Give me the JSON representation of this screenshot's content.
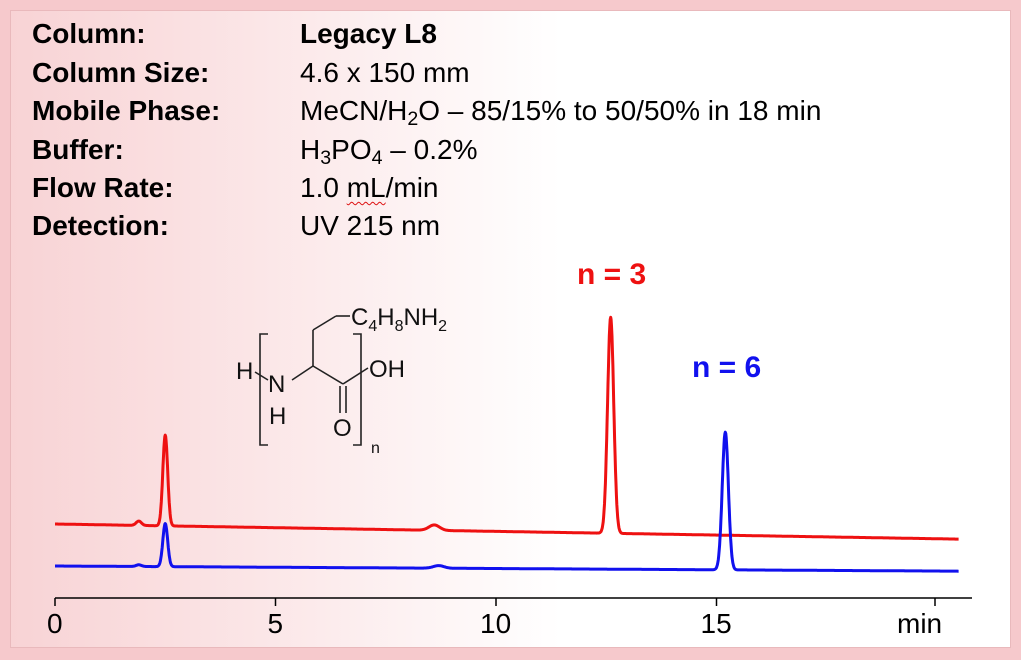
{
  "info": {
    "column_label": "Column:",
    "column_value": "Legacy L8",
    "size_label": "Column Size:",
    "size_value": "4.6 x 150 mm",
    "mobile_label": "Mobile Phase:",
    "mobile_value_a": "MeCN/H",
    "mobile_value_sub": "2",
    "mobile_value_b": "O – 85/15% to 50/50% in 18 min",
    "buffer_label": "Buffer:",
    "buffer_value_a": "H",
    "buffer_value_sub1": "3",
    "buffer_value_b": "PO",
    "buffer_value_sub2": "4",
    "buffer_value_c": " – 0.2%",
    "flow_label": "Flow Rate:",
    "flow_value_a": "1.0 ",
    "flow_value_b": "mL",
    "flow_value_c": "/min",
    "detection_label": "Detection:",
    "detection_value": "UV 215 nm"
  },
  "structure": {
    "side_chain_a": "C",
    "side_chain_sub1": "4",
    "side_chain_b": "H",
    "side_chain_sub2": "8",
    "side_chain_c": "NH",
    "side_chain_sub3": "2",
    "h_left": "H",
    "n_atom": "N",
    "h_below": "H",
    "oh": "OH",
    "o": "O",
    "n_subscript": "n"
  },
  "chart_data": {
    "type": "line",
    "title": "",
    "xlabel": "min",
    "ylabel": "",
    "xlim": [
      0,
      20.5
    ],
    "xticks": [
      0,
      5,
      10,
      15
    ],
    "xtick_labels": [
      "0",
      "5",
      "10",
      "15"
    ],
    "grid": false,
    "series": [
      {
        "name": "n = 3",
        "color": "#ee1111",
        "baseline": [
          [
            0,
            0.0
          ],
          [
            20.5,
            -0.07
          ]
        ],
        "peaks": [
          {
            "t": 1.9,
            "h": 0.02,
            "w": 0.06
          },
          {
            "t": 2.5,
            "h": 0.42,
            "w": 0.055
          },
          {
            "t": 8.6,
            "h": 0.025,
            "w": 0.12
          },
          {
            "t": 12.6,
            "h": 1.0,
            "w": 0.07
          }
        ]
      },
      {
        "name": "n = 6",
        "color": "#1111ee",
        "baseline": [
          [
            0,
            0.0
          ],
          [
            20.5,
            -0.03
          ]
        ],
        "peaks": [
          {
            "t": 1.9,
            "h": 0.01,
            "w": 0.06
          },
          {
            "t": 2.5,
            "h": 0.25,
            "w": 0.055
          },
          {
            "t": 8.7,
            "h": 0.015,
            "w": 0.12
          },
          {
            "t": 15.2,
            "h": 0.8,
            "w": 0.07
          }
        ]
      }
    ]
  }
}
